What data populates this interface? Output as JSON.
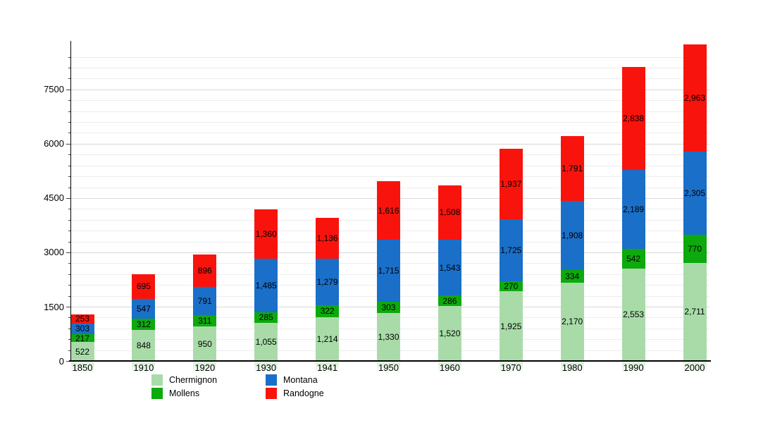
{
  "chart_data": {
    "type": "bar",
    "stacked": true,
    "title": "",
    "xlabel": "",
    "ylabel": "",
    "categories": [
      "1850",
      "1910",
      "1920",
      "1930",
      "1941",
      "1950",
      "1960",
      "1970",
      "1980",
      "1990",
      "2000"
    ],
    "series": [
      {
        "name": "Chermignon",
        "color": "#a9dba9",
        "values": [
          522,
          848,
          950,
          1055,
          1214,
          1330,
          1520,
          1925,
          2170,
          2553,
          2711
        ]
      },
      {
        "name": "Mollens",
        "color": "#0caa0c",
        "values": [
          217,
          312,
          311,
          285,
          322,
          303,
          286,
          270,
          334,
          542,
          770
        ]
      },
      {
        "name": "Montana",
        "color": "#1a6fc9",
        "values": [
          303,
          547,
          791,
          1485,
          1279,
          1715,
          1543,
          1725,
          1908,
          2189,
          2305
        ]
      },
      {
        "name": "Randogne",
        "color": "#f8140d",
        "values": [
          253,
          695,
          896,
          1360,
          1136,
          1616,
          1508,
          1937,
          1791,
          2838,
          2963
        ]
      }
    ],
    "segment_labels": {
      "Chermignon": [
        "522",
        "848",
        "950",
        "1,055",
        "1,214",
        "1,330",
        "1,520",
        "1,925",
        "2,170",
        "2,553",
        "2,711"
      ],
      "Mollens": [
        "217",
        "312",
        "311",
        "285",
        "322",
        "303",
        "286",
        "270",
        "334",
        "542",
        "770"
      ],
      "Montana": [
        "303",
        "547",
        "791",
        "1,485",
        "1,279",
        "1,715",
        "1,543",
        "1,725",
        "1,908",
        "2,189",
        "2,305"
      ],
      "Randogne": [
        "253",
        "695",
        "896",
        "1,360",
        "1,136",
        "1,616",
        "1,508",
        "1,937",
        "1,791",
        "2,838",
        "2,963"
      ]
    },
    "yticks": [
      "0",
      "1500",
      "3000",
      "4500",
      "6000",
      "7500"
    ],
    "ylim": [
      0,
      8800
    ],
    "minor_step": 300,
    "major_step": 1500,
    "grid": true,
    "legend_position": "bottom"
  }
}
